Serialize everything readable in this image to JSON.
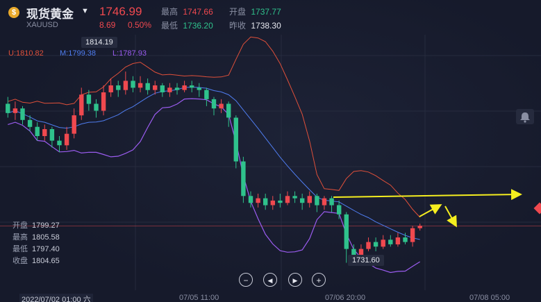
{
  "header": {
    "logo_glyph": "$",
    "name": "现货黄金",
    "symbol": "XAUUSD",
    "price": "1746.99",
    "change": "8.69",
    "change_pct": "0.50%",
    "high_label": "最高",
    "high": "1747.66",
    "open_label": "开盘",
    "open": "1737.77",
    "low_label": "最低",
    "low": "1736.20",
    "prev_label": "昨收",
    "prev_close": "1738.30"
  },
  "bands": {
    "upper": "U:1810.82",
    "mid": "M:1799.38",
    "lower": "L:1787.93"
  },
  "ohlc_panel": {
    "open_label": "开盘",
    "open": "1799.27",
    "high_label": "最高",
    "high": "1805.58",
    "low_label": "最低",
    "low": "1797.40",
    "close_label": "收盘",
    "close": "1804.65"
  },
  "price_tags": {
    "peak": "1814.19",
    "trough": "1731.60"
  },
  "controls": {
    "zoom_out": "−",
    "prev": "◀",
    "next": "▶",
    "zoom_in": "+"
  },
  "time_axis": {
    "cursor_time": "2022/07/02 01:00 六",
    "t1": "07/05 11:00",
    "t2": "07/06 20:00",
    "t3": "07/08 05:00"
  },
  "colors": {
    "up": "#f0494f",
    "down": "#2fc28c",
    "upper_band": "#e0503a",
    "mid_band": "#4f7df0",
    "lower_band": "#9b5cf0",
    "annotation": "#f5ee1f"
  },
  "chart_data": {
    "type": "candlestick",
    "price_range": [
      1720,
      1830
    ],
    "candles": [
      [
        1800,
        1796,
        1803,
        1794
      ],
      [
        1796,
        1798,
        1801,
        1793
      ],
      [
        1798,
        1793,
        1799,
        1791
      ],
      [
        1793,
        1790,
        1795,
        1788
      ],
      [
        1790,
        1786,
        1792,
        1784
      ],
      [
        1786,
        1789,
        1791,
        1784
      ],
      [
        1789,
        1784,
        1790,
        1781
      ],
      [
        1784,
        1782,
        1786,
        1779
      ],
      [
        1782,
        1787,
        1790,
        1780
      ],
      [
        1787,
        1795,
        1798,
        1785
      ],
      [
        1795,
        1804,
        1807,
        1793
      ],
      [
        1804,
        1800,
        1806,
        1797
      ],
      [
        1800,
        1797,
        1802,
        1794
      ],
      [
        1797,
        1805,
        1808,
        1795
      ],
      [
        1805,
        1808,
        1811,
        1803
      ],
      [
        1808,
        1806,
        1810,
        1803
      ],
      [
        1806,
        1810,
        1814,
        1804
      ],
      [
        1810,
        1807,
        1812,
        1805
      ],
      [
        1807,
        1809,
        1812,
        1805
      ],
      [
        1809,
        1806,
        1811,
        1804
      ],
      [
        1806,
        1808,
        1810,
        1804
      ],
      [
        1808,
        1805,
        1809,
        1803
      ],
      [
        1805,
        1807,
        1809,
        1803
      ],
      [
        1807,
        1806,
        1809,
        1804
      ],
      [
        1806,
        1808,
        1810,
        1805
      ],
      [
        1808,
        1807,
        1810,
        1805
      ],
      [
        1807,
        1806,
        1809,
        1803
      ],
      [
        1806,
        1802,
        1807,
        1799
      ],
      [
        1802,
        1798,
        1803,
        1795
      ],
      [
        1798,
        1800,
        1802,
        1796
      ],
      [
        1800,
        1794,
        1801,
        1790
      ],
      [
        1794,
        1775,
        1795,
        1772
      ],
      [
        1775,
        1760,
        1777,
        1757
      ],
      [
        1760,
        1757,
        1762,
        1755
      ],
      [
        1757,
        1759,
        1761,
        1755
      ],
      [
        1759,
        1756,
        1761,
        1754
      ],
      [
        1756,
        1758,
        1760,
        1754
      ],
      [
        1758,
        1757,
        1761,
        1755
      ],
      [
        1757,
        1760,
        1762,
        1756
      ],
      [
        1760,
        1759,
        1762,
        1757
      ],
      [
        1759,
        1757,
        1761,
        1754
      ],
      [
        1757,
        1760,
        1762,
        1755
      ],
      [
        1760,
        1756,
        1761,
        1753
      ],
      [
        1756,
        1759,
        1760,
        1754
      ],
      [
        1759,
        1756,
        1760,
        1753
      ],
      [
        1756,
        1752,
        1758,
        1750
      ],
      [
        1752,
        1737,
        1753,
        1731
      ],
      [
        1737,
        1734,
        1739,
        1732
      ],
      [
        1734,
        1737,
        1739,
        1733
      ],
      [
        1737,
        1740,
        1742,
        1736
      ],
      [
        1740,
        1738,
        1742,
        1736
      ],
      [
        1738,
        1741,
        1743,
        1737
      ],
      [
        1741,
        1739,
        1743,
        1738
      ],
      [
        1739,
        1742,
        1744,
        1738
      ],
      [
        1742,
        1740,
        1744,
        1739
      ],
      [
        1740,
        1746,
        1747,
        1738
      ],
      [
        1746,
        1747,
        1748,
        1745
      ]
    ]
  }
}
